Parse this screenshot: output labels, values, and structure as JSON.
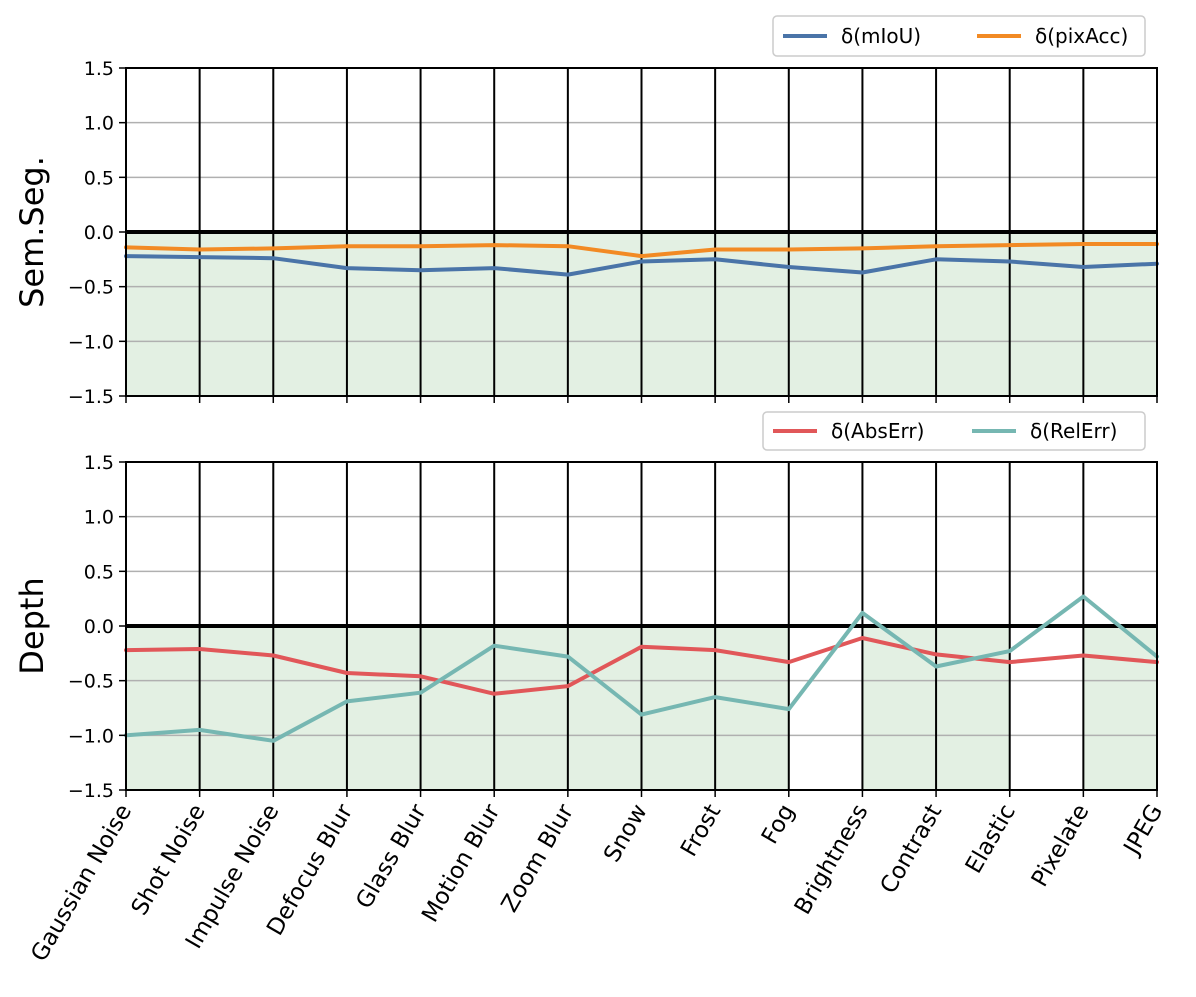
{
  "chart_data": [
    {
      "type": "line",
      "ylabel": "Sem.Seg.",
      "ylim": [
        -1.5,
        1.5
      ],
      "yticks": [
        "1.5",
        "1.0",
        "0.5",
        "0.0",
        "−0.5",
        "−1.0",
        "−1.5"
      ],
      "categories": [
        "Gaussian Noise",
        "Shot Noise",
        "Impulse Noise",
        "Defocus Blur",
        "Glass Blur",
        "Motion Blur",
        "Zoom Blur",
        "Snow",
        "Frost",
        "Fog",
        "Brightness",
        "Contrast",
        "Elastic",
        "Pixelate",
        "JPEG"
      ],
      "grid": true,
      "legend": "top-right",
      "series": [
        {
          "name": "δ(mIoU)",
          "color": "#4a74a8",
          "values": [
            -0.22,
            -0.23,
            -0.24,
            -0.33,
            -0.35,
            -0.33,
            -0.39,
            -0.27,
            -0.25,
            -0.32,
            -0.37,
            -0.25,
            -0.27,
            -0.32,
            -0.29
          ]
        },
        {
          "name": "δ(pixAcc)",
          "color": "#f28a24",
          "values": [
            -0.14,
            -0.16,
            -0.15,
            -0.13,
            -0.13,
            -0.12,
            -0.13,
            -0.22,
            -0.16,
            -0.16,
            -0.15,
            -0.13,
            -0.12,
            -0.11,
            -0.11
          ]
        }
      ],
      "negative_shade": [
        true,
        true,
        true,
        true,
        true,
        true,
        true,
        true,
        true,
        true,
        true,
        true,
        true,
        true
      ]
    },
    {
      "type": "line",
      "ylabel": "Depth",
      "ylim": [
        -1.5,
        1.5
      ],
      "yticks": [
        "1.5",
        "1.0",
        "0.5",
        "0.0",
        "−0.5",
        "−1.0",
        "−1.5"
      ],
      "categories": [
        "Gaussian Noise",
        "Shot Noise",
        "Impulse Noise",
        "Defocus Blur",
        "Glass Blur",
        "Motion Blur",
        "Zoom Blur",
        "Snow",
        "Frost",
        "Fog",
        "Brightness",
        "Contrast",
        "Elastic",
        "Pixelate",
        "JPEG"
      ],
      "grid": true,
      "legend": "top-right",
      "series": [
        {
          "name": "δ(AbsErr)",
          "color": "#e15759",
          "values": [
            -0.22,
            -0.21,
            -0.27,
            -0.43,
            -0.46,
            -0.62,
            -0.55,
            -0.19,
            -0.22,
            -0.33,
            -0.11,
            -0.26,
            -0.33,
            -0.27,
            -0.33
          ]
        },
        {
          "name": "δ(RelErr)",
          "color": "#76b7b2",
          "values": [
            -1.0,
            -0.95,
            -1.05,
            -0.69,
            -0.61,
            -0.18,
            -0.28,
            -0.81,
            -0.65,
            -0.76,
            0.12,
            -0.37,
            -0.23,
            0.27,
            -0.28
          ]
        }
      ],
      "negative_shade": [
        true,
        true,
        true,
        true,
        true,
        true,
        true,
        true,
        true,
        false,
        true,
        true,
        false,
        true
      ]
    }
  ],
  "colors": {
    "shade": "#e3f0e3",
    "zero_line": "#000000",
    "grid": "#b0b0b0",
    "category_line": "#000000",
    "legend_border": "#cccccc"
  }
}
